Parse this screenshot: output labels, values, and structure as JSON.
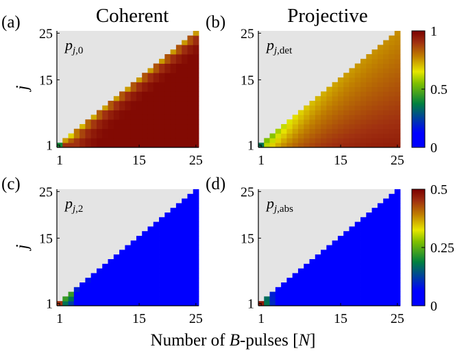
{
  "figure": {
    "column_titles": [
      "Coherent",
      "Projective"
    ],
    "xlabel": "Number of B-pulses [N]",
    "xlabel_parts": [
      "Number of ",
      "B",
      "-pulses [",
      "N",
      "]"
    ],
    "ylabel": "j"
  },
  "chart_data": [
    {
      "type": "heatmap",
      "panel_label": "(a)",
      "annotation": "p_{j,0}",
      "annotation_parts": [
        "p",
        "j",
        ",0"
      ],
      "x_ticks": [
        "1",
        "15",
        "25"
      ],
      "y_ticks": [
        "1",
        "15",
        "25"
      ],
      "x_range": [
        1,
        25
      ],
      "y_range": [
        1,
        25
      ],
      "domain": "j <= N (grey where j > N)",
      "z_description": "high (~1) over most of the region; lower (~0.65–0.8) bands near the diagonal for small N; lowest values near N=1..3",
      "z_range": [
        0,
        1
      ],
      "colorscale": "jet",
      "grid": false
    },
    {
      "type": "heatmap",
      "panel_label": "(b)",
      "annotation": "p_{j,det}",
      "annotation_parts": [
        "p",
        "j",
        ",det"
      ],
      "x_ticks": [
        "1",
        "15",
        "25"
      ],
      "y_ticks": [
        "1",
        "15",
        "25"
      ],
      "x_range": [
        1,
        25
      ],
      "y_range": [
        1,
        25
      ],
      "domain": "j <= N",
      "z_description": "~0.5–0.6 (yellow) near diagonal at small N, decreasing to ~0.8 (brown) in the middle, ~1 (red) near j=1 at large N",
      "z_range": [
        0,
        1
      ],
      "colorscale": "jet",
      "colorbar_ticks": [
        "1",
        "0.5",
        "0"
      ],
      "grid": false
    },
    {
      "type": "heatmap",
      "panel_label": "(c)",
      "annotation": "p_{j,2}",
      "annotation_parts": [
        "p",
        "j",
        ",2"
      ],
      "x_ticks": [
        "1",
        "15",
        "25"
      ],
      "y_ticks": [
        "1",
        "15",
        "25"
      ],
      "x_range": [
        1,
        25
      ],
      "y_range": [
        1,
        25
      ],
      "domain": "j <= N",
      "z_description": "~0 (blue) almost everywhere; faint bands near diagonal; ~0.5 at N=1,j=1",
      "z_range": [
        0,
        0.5
      ],
      "colorscale": "jet",
      "grid": false
    },
    {
      "type": "heatmap",
      "panel_label": "(d)",
      "annotation": "p_{j,abs}",
      "annotation_parts": [
        "p",
        "j",
        ",abs"
      ],
      "x_ticks": [
        "1",
        "15",
        "25"
      ],
      "y_ticks": [
        "1",
        "15",
        "25"
      ],
      "x_range": [
        1,
        25
      ],
      "y_range": [
        1,
        25
      ],
      "domain": "j <= N",
      "z_description": "~0.5 at N=1, decreasing quickly to ~0.05 (blue) for larger N",
      "z_range": [
        0,
        0.5
      ],
      "colorscale": "jet",
      "colorbar_ticks": [
        "0.5",
        "0.25",
        "0"
      ],
      "grid": false
    }
  ],
  "colors": {
    "masked_region": "#e4e4e4",
    "background": "#ffffff",
    "colormap": "jet"
  }
}
